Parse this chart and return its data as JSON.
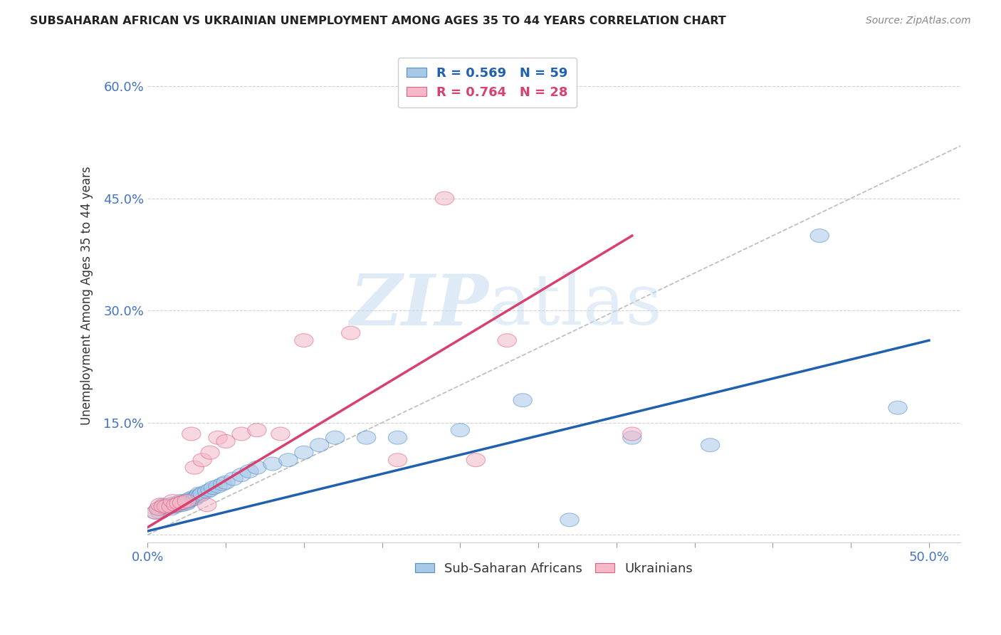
{
  "title": "SUBSAHARAN AFRICAN VS UKRAINIAN UNEMPLOYMENT AMONG AGES 35 TO 44 YEARS CORRELATION CHART",
  "source": "Source: ZipAtlas.com",
  "ylabel": "Unemployment Among Ages 35 to 44 years",
  "xlim": [
    0.0,
    0.52
  ],
  "ylim": [
    -0.01,
    0.65
  ],
  "xtick_positions": [
    0.0,
    0.05,
    0.1,
    0.15,
    0.2,
    0.25,
    0.3,
    0.35,
    0.4,
    0.45,
    0.5
  ],
  "ytick_positions": [
    0.0,
    0.15,
    0.3,
    0.45,
    0.6
  ],
  "legend_label1": "R = 0.569   N = 59",
  "legend_label2": "R = 0.764   N = 28",
  "legend_bottom_label1": "Sub-Saharan Africans",
  "legend_bottom_label2": "Ukrainians",
  "blue_color": "#a8c8e8",
  "pink_color": "#f4b8c8",
  "blue_edge_color": "#5590c8",
  "pink_edge_color": "#e06080",
  "blue_line_color": "#2060b0",
  "pink_line_color": "#d84070",
  "gray_dashed_color": "#bbbbbb",
  "blue_x": [
    0.005,
    0.007,
    0.008,
    0.01,
    0.01,
    0.012,
    0.013,
    0.014,
    0.015,
    0.015,
    0.015,
    0.016,
    0.017,
    0.018,
    0.018,
    0.019,
    0.02,
    0.02,
    0.021,
    0.022,
    0.022,
    0.023,
    0.024,
    0.025,
    0.025,
    0.026,
    0.027,
    0.028,
    0.029,
    0.03,
    0.031,
    0.032,
    0.033,
    0.034,
    0.035,
    0.038,
    0.04,
    0.042,
    0.045,
    0.048,
    0.05,
    0.055,
    0.06,
    0.065,
    0.07,
    0.08,
    0.09,
    0.1,
    0.11,
    0.12,
    0.14,
    0.16,
    0.2,
    0.24,
    0.27,
    0.31,
    0.36,
    0.43,
    0.48
  ],
  "blue_y": [
    0.03,
    0.035,
    0.03,
    0.04,
    0.038,
    0.035,
    0.038,
    0.04,
    0.035,
    0.038,
    0.04,
    0.038,
    0.042,
    0.04,
    0.038,
    0.04,
    0.042,
    0.04,
    0.045,
    0.042,
    0.04,
    0.043,
    0.045,
    0.043,
    0.042,
    0.045,
    0.048,
    0.047,
    0.05,
    0.048,
    0.05,
    0.052,
    0.055,
    0.053,
    0.055,
    0.058,
    0.06,
    0.063,
    0.065,
    0.068,
    0.07,
    0.075,
    0.08,
    0.085,
    0.09,
    0.095,
    0.1,
    0.11,
    0.12,
    0.13,
    0.13,
    0.13,
    0.14,
    0.18,
    0.02,
    0.13,
    0.12,
    0.4,
    0.17
  ],
  "pink_x": [
    0.005,
    0.007,
    0.008,
    0.01,
    0.012,
    0.015,
    0.016,
    0.018,
    0.02,
    0.022,
    0.025,
    0.028,
    0.03,
    0.035,
    0.038,
    0.04,
    0.045,
    0.05,
    0.06,
    0.07,
    0.085,
    0.1,
    0.13,
    0.16,
    0.19,
    0.21,
    0.23,
    0.31
  ],
  "pink_y": [
    0.03,
    0.035,
    0.04,
    0.038,
    0.038,
    0.038,
    0.045,
    0.04,
    0.042,
    0.043,
    0.045,
    0.135,
    0.09,
    0.1,
    0.04,
    0.11,
    0.13,
    0.125,
    0.135,
    0.14,
    0.135,
    0.26,
    0.27,
    0.1,
    0.45,
    0.1,
    0.26,
    0.135
  ],
  "blue_trend_x": [
    0.0,
    0.5
  ],
  "blue_trend_y": [
    0.005,
    0.26
  ],
  "pink_trend_x": [
    0.0,
    0.31
  ],
  "pink_trend_y": [
    0.01,
    0.4
  ]
}
